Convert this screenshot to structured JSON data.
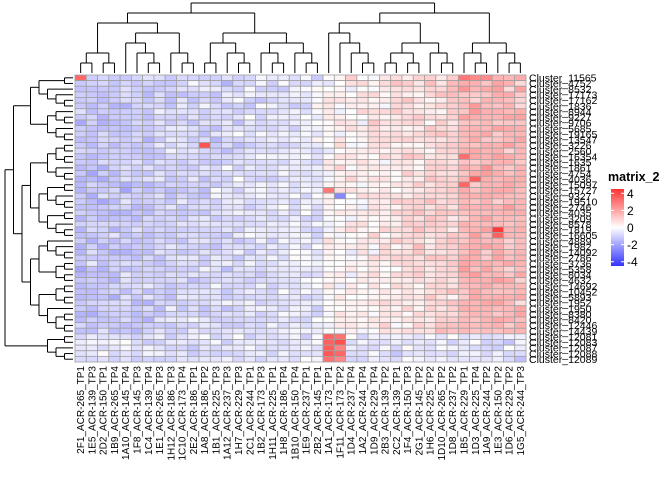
{
  "chart_data": {
    "type": "heatmap",
    "title": "",
    "legend": {
      "title": "matrix_2",
      "ticks": [
        4,
        2,
        0,
        -2,
        -4
      ],
      "range": [
        -4.5,
        4.5
      ],
      "colors": {
        "low": "#3333ff",
        "mid": "#ffffff",
        "high": "#ff3333"
      },
      "placement": "right"
    },
    "columns": [
      "2F1_ACR-265_TP1",
      "1E5_ACR-139_TP3",
      "2D2_ACR-150_TP1",
      "1B9_ACR-265_TP4",
      "1A10_ACR-145_TP4",
      "1F8_ACR-145_TP3",
      "1C4_ACR-139_TP4",
      "1E1_ACR-265_TP3",
      "1H12_ACR-186_TP3",
      "1C10_ACR-173_TP4",
      "2E2_ACR-186_TP1",
      "1A8_ACR-186_TP2",
      "1B1_ACR-225_TP3",
      "1A12_ACR-237_TP3",
      "1H7_ACR-229_TP3",
      "2C1_ACR-244_TP1",
      "1B2_ACR-173_TP3",
      "1H11_ACR-225_TP1",
      "1H8_ACR-186_TP4",
      "1B10_ACR-150_TP4",
      "1E9_ACR-237_TP1",
      "2B2_ACR-145_TP1",
      "1A1_ACR-173_TP1",
      "1F11_ACR-173_TP2",
      "1D4_ACR-237_TP4",
      "1A2_ACR-244_TP4",
      "1D9_ACR-229_TP4",
      "2B3_ACR-139_TP2",
      "2C2_ACR-139_TP1",
      "1F4_ACR-150_TP3",
      "2G1_ACR-145_TP2",
      "1H6_ACR-225_TP2",
      "1D10_ACR-265_TP2",
      "1D8_ACR-237_TP2",
      "1B5_ACR-229_TP1",
      "1D3_ACR-225_TP4",
      "1A9_ACR-244_TP2",
      "1E3_ACR-150_TP2",
      "1D6_ACR-229_TP2",
      "1G5_ACR-244_TP3"
    ],
    "rows": [
      "Cluster_11565",
      "Cluster_4752",
      "Cluster_8532",
      "Cluster_17173",
      "Cluster_17162",
      "Cluster_1836",
      "Cluster_8944",
      "Cluster_9227",
      "Cluster_9706",
      "Cluster_5685",
      "Cluster_19165",
      "Cluster_13547",
      "Cluster_3226",
      "Cluster_2560",
      "Cluster_16354",
      "Cluster_1635",
      "Cluster_1861",
      "Cluster_4754",
      "Cluster_4036",
      "Cluster_15097",
      "Cluster_15727",
      "Cluster_9327",
      "Cluster_19510",
      "Cluster_2746",
      "Cluster_4035",
      "Cluster_3209",
      "Cluster_8578",
      "Cluster_1819",
      "Cluster_16605",
      "Cluster_4889",
      "Cluster_1982",
      "Cluster_14092",
      "Cluster_2786",
      "Cluster_3736",
      "Cluster_5358",
      "Cluster_8034",
      "Cluster_4632",
      "Cluster_14692",
      "Cluster_10452",
      "Cluster_5893",
      "Cluster_1952",
      "Cluster_1950",
      "Cluster_8380",
      "Cluster_8420",
      "Cluster_12446",
      "Cluster_14439",
      "Cluster_12081",
      "Cluster_12083",
      "Cluster_12087",
      "Cluster_12088",
      "Cluster_12089"
    ],
    "values_note": "z-scored expression, approx. -4.5 to 4.5",
    "seed": 7
  }
}
